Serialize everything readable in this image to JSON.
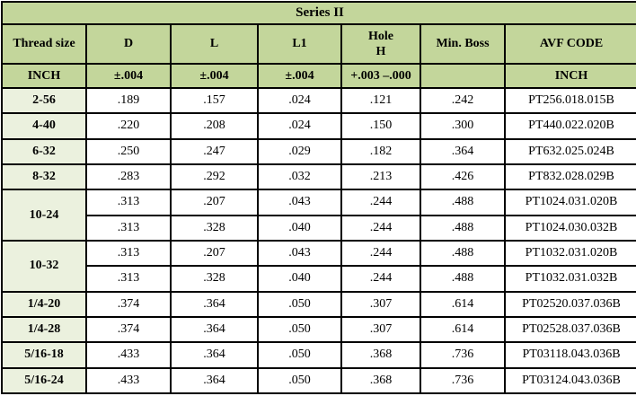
{
  "colors": {
    "header_bg": "#c3d69b",
    "thread_col_bg": "#ebf1de",
    "border": "#000000",
    "data_bg": "#ffffff"
  },
  "chart_data": {
    "type": "table",
    "title": "Series II",
    "columns": [
      "Thread size",
      "D",
      "L",
      "L1",
      "Hole\nH",
      "Min. Boss",
      "AVF CODE"
    ],
    "tolerance_row": [
      "INCH",
      "±.004",
      "±.004",
      "±.004",
      "+.003 –.000",
      "",
      "INCH"
    ],
    "row_groups": [
      {
        "thread": "2-56",
        "rows": [
          [
            ".189",
            ".157",
            ".024",
            ".121",
            ".242",
            "PT256.018.015B"
          ]
        ]
      },
      {
        "thread": "4-40",
        "rows": [
          [
            ".220",
            ".208",
            ".024",
            ".150",
            ".300",
            "PT440.022.020B"
          ]
        ]
      },
      {
        "thread": "6-32",
        "rows": [
          [
            ".250",
            ".247",
            ".029",
            ".182",
            ".364",
            "PT632.025.024B"
          ]
        ]
      },
      {
        "thread": "8-32",
        "rows": [
          [
            ".283",
            ".292",
            ".032",
            ".213",
            ".426",
            "PT832.028.029B"
          ]
        ]
      },
      {
        "thread": "10-24",
        "rows": [
          [
            ".313",
            ".207",
            ".043",
            ".244",
            ".488",
            "PT1024.031.020B"
          ],
          [
            ".313",
            ".328",
            ".040",
            ".244",
            ".488",
            "PT1024.030.032B"
          ]
        ]
      },
      {
        "thread": "10-32",
        "rows": [
          [
            ".313",
            ".207",
            ".043",
            ".244",
            ".488",
            "PT1032.031.020B"
          ],
          [
            ".313",
            ".328",
            ".040",
            ".244",
            ".488",
            "PT1032.031.032B"
          ]
        ]
      },
      {
        "thread": "1/4-20",
        "rows": [
          [
            ".374",
            ".364",
            ".050",
            ".307",
            ".614",
            "PT02520.037.036B"
          ]
        ]
      },
      {
        "thread": "1/4-28",
        "rows": [
          [
            ".374",
            ".364",
            ".050",
            ".307",
            ".614",
            "PT02528.037.036B"
          ]
        ]
      },
      {
        "thread": "5/16-18",
        "rows": [
          [
            ".433",
            ".364",
            ".050",
            ".368",
            ".736",
            "PT03118.043.036B"
          ]
        ]
      },
      {
        "thread": "5/16-24",
        "rows": [
          [
            ".433",
            ".364",
            ".050",
            ".368",
            ".736",
            "PT03124.043.036B"
          ]
        ]
      }
    ]
  }
}
